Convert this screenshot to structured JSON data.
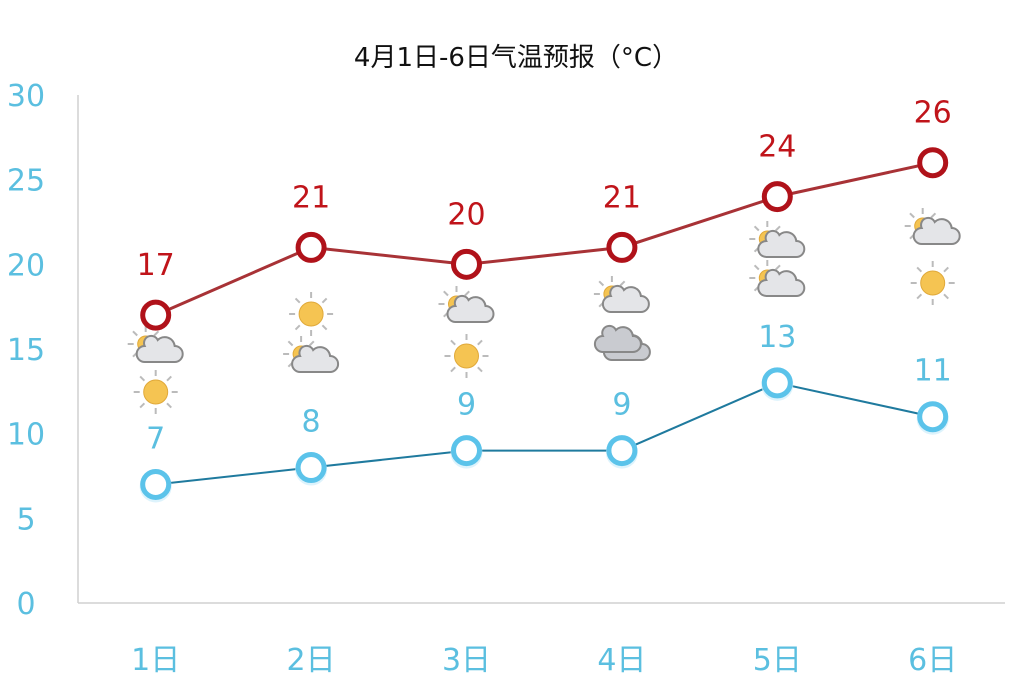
{
  "chart_data": {
    "type": "line",
    "title": "4月1日-6日气温预报（°C）",
    "categories": [
      "1日",
      "2日",
      "3日",
      "4日",
      "5日",
      "6日"
    ],
    "ylim": [
      0,
      30
    ],
    "yticks": [
      0,
      5,
      10,
      15,
      20,
      25,
      30
    ],
    "ytick_labels": [
      "0",
      "5",
      "10",
      "15",
      "20",
      "25",
      "30"
    ],
    "grid": false,
    "series": [
      {
        "key": "high",
        "values": [
          17,
          21,
          20,
          21,
          24,
          26
        ],
        "labels": [
          "17",
          "21",
          "20",
          "21",
          "24",
          "26"
        ],
        "color": "#a83236",
        "marker_color": "#b0121a"
      },
      {
        "key": "low",
        "values": [
          7,
          8,
          9,
          9,
          13,
          11
        ],
        "labels": [
          "7",
          "8",
          "9",
          "9",
          "13",
          "11"
        ],
        "color": "#1f7a9e",
        "marker_color": "#5bc3ea"
      }
    ],
    "weather_icons": [
      [
        "partly-cloudy-icon",
        "sunny-icon"
      ],
      [
        "sunny-icon",
        "partly-cloudy-icon"
      ],
      [
        "partly-cloudy-icon",
        "sunny-icon"
      ],
      [
        "partly-cloudy-icon",
        "cloudy-icon"
      ],
      [
        "partly-cloudy-icon",
        "partly-cloudy-icon"
      ],
      [
        "partly-cloudy-icon",
        "sunny-icon"
      ]
    ]
  }
}
